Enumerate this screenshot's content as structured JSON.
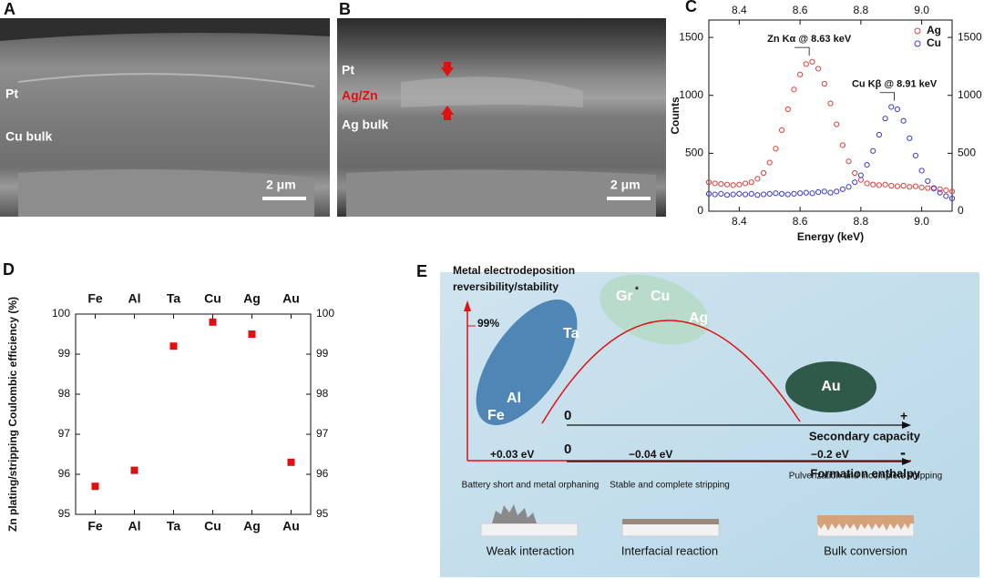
{
  "images": [
    {
      "panel": "A",
      "labels": [
        "Pt",
        "Cu bulk"
      ],
      "scale_bar": "2 μm"
    },
    {
      "panel": "B",
      "labels": [
        "Pt",
        "Ag/Zn",
        "Ag bulk"
      ],
      "scale_bar": "2 μm"
    }
  ],
  "chart_data": [
    {
      "type": "scatter",
      "panel": "C",
      "x_label": "Energy (keV)",
      "y_label": "Counts",
      "annotations": [
        "Zn Kα @ 8.63 keV",
        "Cu Kβ @ 8.91 keV"
      ],
      "xlim": [
        8.3,
        9.1
      ],
      "ylim": [
        0,
        1650
      ],
      "xticks": [
        8.4,
        8.6,
        8.8,
        {
          "value": 9,
          "label": "9.0"
        }
      ],
      "yticks": [
        0,
        500,
        1000,
        1500
      ],
      "marker": "open-circle",
      "legend": "top-right",
      "x": [
        8.3,
        8.32,
        8.34,
        8.36,
        8.38,
        8.4,
        8.42,
        8.44,
        8.46,
        8.48,
        8.5,
        8.52,
        8.54,
        8.56,
        8.58,
        8.6,
        8.62,
        8.64,
        8.66,
        8.68,
        8.7,
        8.72,
        8.74,
        8.76,
        8.78,
        8.8,
        8.82,
        8.84,
        8.86,
        8.88,
        8.9,
        8.92,
        8.94,
        8.96,
        8.98,
        9.0,
        9.02,
        9.04,
        9.06,
        9.08,
        9.1
      ],
      "series": [
        {
          "name": "Ag",
          "color": "#e03c3c",
          "values": [
            250,
            240,
            235,
            230,
            225,
            230,
            240,
            250,
            280,
            330,
            420,
            540,
            700,
            880,
            1050,
            1180,
            1270,
            1290,
            1230,
            1100,
            930,
            750,
            570,
            430,
            330,
            270,
            240,
            230,
            225,
            230,
            220,
            215,
            220,
            210,
            215,
            205,
            200,
            195,
            190,
            180,
            170
          ]
        },
        {
          "name": "Cu",
          "color": "#3a3ad0",
          "values": [
            150,
            145,
            150,
            140,
            145,
            150,
            145,
            150,
            140,
            145,
            150,
            155,
            150,
            145,
            150,
            155,
            160,
            155,
            165,
            170,
            160,
            170,
            190,
            210,
            250,
            310,
            400,
            520,
            660,
            800,
            900,
            880,
            780,
            630,
            480,
            350,
            260,
            200,
            160,
            130,
            110
          ]
        }
      ]
    },
    {
      "type": "scatter",
      "panel": "D",
      "y_label": "Zn plating/stripping Coulombic efficiency (%)",
      "categories": [
        "Fe",
        "Al",
        "Ta",
        "Cu",
        "Ag",
        "Au"
      ],
      "values": [
        95.7,
        96.1,
        99.2,
        99.8,
        99.5,
        96.3
      ],
      "color": "#e01010",
      "marker": "square",
      "ylim": [
        95,
        100
      ],
      "yticks": [
        95,
        96,
        97,
        98,
        99,
        100
      ]
    }
  ],
  "diagram": {
    "panel": "E",
    "y_axis_label": [
      "Metal electrodeposition",
      "reversibility/stability"
    ],
    "y_marker": "99%",
    "groups": [
      {
        "labels": [
          "Ta",
          "Al",
          "Fe"
        ]
      },
      {
        "labels": [
          "Gr",
          "Cu",
          "Ag"
        ],
        "superscript": "*"
      },
      {
        "labels": [
          "Au"
        ]
      }
    ],
    "axes": [
      {
        "origin": "0",
        "end": "+",
        "label": "Secondary capacity"
      },
      {
        "origin": "0",
        "end": "-",
        "label": "Formation enthalpy",
        "points": [
          "+0.03 eV",
          "−0.04 eV",
          "−0.2 eV"
        ]
      }
    ],
    "outcomes": [
      {
        "note": "Battery short and metal orphaning",
        "label": "Weak interaction"
      },
      {
        "note": "Stable and complete stripping",
        "label": "Interfacial reaction"
      },
      {
        "note": "Pulverization and incomplete stripping",
        "label": "Bulk conversion"
      }
    ]
  }
}
